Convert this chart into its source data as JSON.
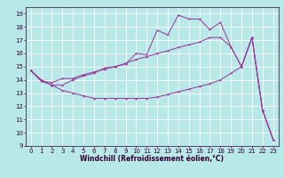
{
  "title": "",
  "xlabel": "Windchill (Refroidissement éolien,°C)",
  "ylabel": "",
  "background_color": "#b8e8e8",
  "line_color": "#993399",
  "grid_color": "#ffffff",
  "xlim": [
    -0.5,
    23.5
  ],
  "ylim": [
    9,
    19.5
  ],
  "xticks": [
    0,
    1,
    2,
    3,
    4,
    5,
    6,
    7,
    8,
    9,
    10,
    11,
    12,
    13,
    14,
    15,
    16,
    17,
    18,
    19,
    20,
    21,
    22,
    23
  ],
  "yticks": [
    9,
    10,
    11,
    12,
    13,
    14,
    15,
    16,
    17,
    18,
    19
  ],
  "x": [
    0,
    1,
    2,
    3,
    4,
    5,
    6,
    7,
    8,
    9,
    10,
    11,
    12,
    13,
    14,
    15,
    16,
    17,
    18,
    19,
    20,
    21,
    22,
    23
  ],
  "line1": [
    14.7,
    13.9,
    13.6,
    13.6,
    14.0,
    14.3,
    14.5,
    14.9,
    15.0,
    15.2,
    16.0,
    15.9,
    17.75,
    17.4,
    18.9,
    18.6,
    18.6,
    17.8,
    18.35,
    16.5,
    15.0,
    17.2,
    11.7,
    9.5
  ],
  "line2": [
    14.7,
    13.9,
    13.8,
    14.1,
    14.1,
    14.4,
    14.6,
    14.8,
    15.0,
    15.25,
    15.55,
    15.75,
    16.0,
    16.2,
    16.45,
    16.65,
    16.85,
    17.2,
    17.2,
    16.5,
    15.0,
    17.2,
    11.7,
    9.5
  ],
  "line3": [
    14.7,
    14.0,
    13.6,
    13.2,
    13.0,
    12.8,
    12.6,
    12.6,
    12.6,
    12.6,
    12.6,
    12.6,
    12.7,
    12.9,
    13.1,
    13.3,
    13.5,
    13.7,
    14.0,
    14.5,
    15.0,
    17.2,
    11.7,
    9.5
  ],
  "tick_fontsize": 5.0,
  "xlabel_fontsize": 5.5,
  "linewidth": 0.7,
  "markersize": 2.5
}
